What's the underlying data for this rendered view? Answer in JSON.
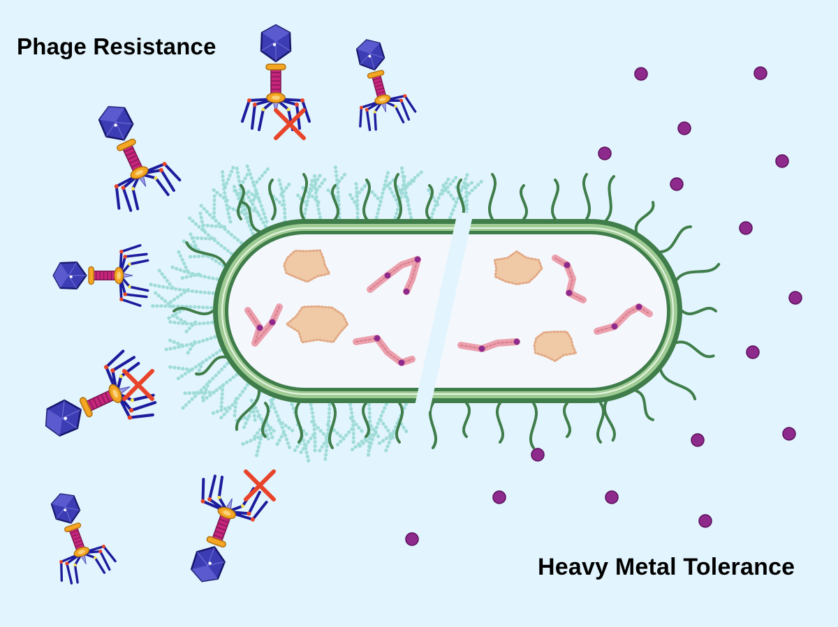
{
  "labels": {
    "phage_resistance": "Phage Resistance",
    "heavy_metal_tolerance": "Heavy Metal Tolerance"
  },
  "colors": {
    "background": "#e2f4fd",
    "membrane_outer": "#3f7d4a",
    "membrane_inner": "#9fcb94",
    "cytoplasm": "#f4f8fd",
    "capsule": "#9fdcd8",
    "pili": "#3f7d4a",
    "metal_ion": "#8e2a8c",
    "metal_ion_edge": "#5a0f5c",
    "phage_head": "#3c3cb4",
    "phage_tail": "#c6257b",
    "phage_collar": "#f5a623",
    "phage_legs": "#1c1c9c",
    "block_mark": "#e8442a",
    "protein_complex": "#f0c9a6",
    "protein_chain": "#eba0ad"
  },
  "phages": [
    {
      "name": "phage-1",
      "blocked": true
    },
    {
      "name": "phage-2",
      "blocked": false
    },
    {
      "name": "phage-3",
      "blocked": false
    },
    {
      "name": "phage-4",
      "blocked": false
    },
    {
      "name": "phage-5",
      "blocked": true
    },
    {
      "name": "phage-6",
      "blocked": false
    },
    {
      "name": "phage-7",
      "blocked": true
    }
  ],
  "metal_ion_count": 19
}
